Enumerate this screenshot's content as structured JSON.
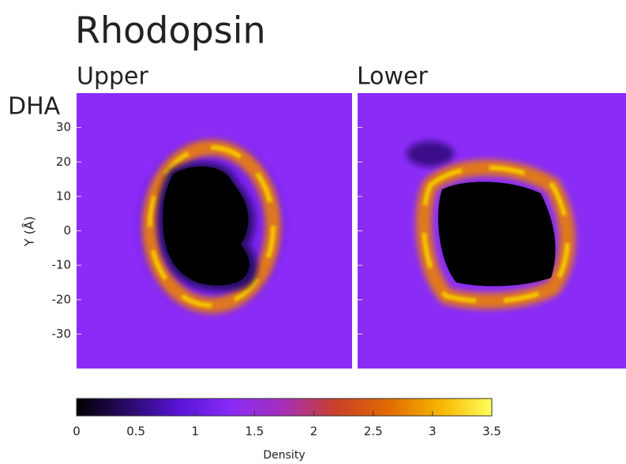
{
  "chart_data": {
    "type": "heatmap",
    "title": "Rhodopsin",
    "row_label": "DHA",
    "y_label": "Y (Å)",
    "panels": [
      "Upper",
      "Lower"
    ],
    "ylim": [
      -40,
      40
    ],
    "yticks": [
      30,
      20,
      10,
      0,
      -10,
      -20,
      -30
    ],
    "colorbar": {
      "label": "Density",
      "lim": [
        0,
        3.5
      ],
      "ticks": [
        0,
        0.5,
        1,
        1.5,
        2,
        2.5,
        3,
        3.5
      ],
      "colors": [
        "#000000",
        "#2a0a6a",
        "#5a14d8",
        "#8a2cf6",
        "#a62fb8",
        "#c8402a",
        "#e06a00",
        "#f7b400",
        "#ffff5a"
      ]
    }
  }
}
